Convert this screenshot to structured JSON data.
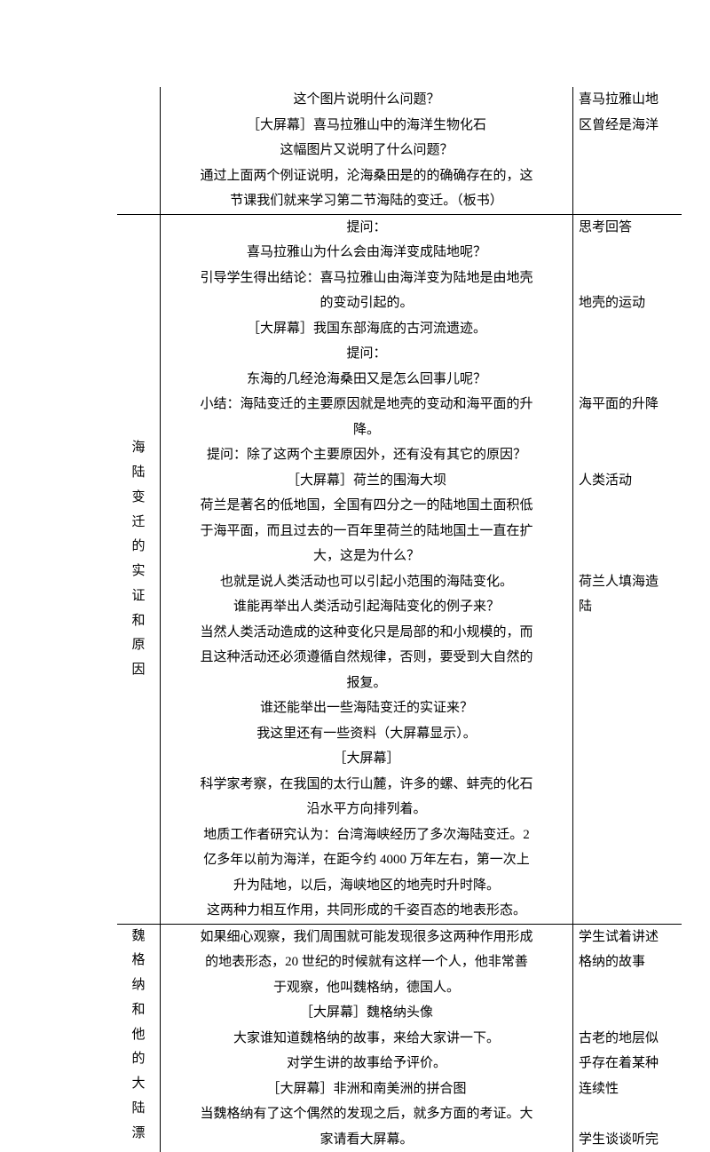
{
  "section1": {
    "left": "",
    "mid": [
      "这个图片说明什么问题？",
      "［大屏幕］喜马拉雅山中的海洋生物化石",
      "这幅图片又说明了什么问题？",
      "通过上面两个例证说明，沦海桑田是的的确确存在的，这",
      "节课我们就来学习第二节海陆的变迁。（板书）"
    ],
    "right": [
      "喜马拉雅山地",
      "区曾经是海洋"
    ]
  },
  "section2": {
    "left": [
      "海",
      "陆",
      "变",
      "迁",
      "的",
      "实",
      "证",
      "和",
      "原",
      "因"
    ],
    "mid": [
      "提问：",
      "喜马拉雅山为什么会由海洋变成陆地呢？",
      "引导学生得出结论：喜马拉雅山由海洋变为陆地是由地壳",
      "的变动引起的。",
      "［大屏幕］我国东部海底的古河流遗迹。",
      "提问：",
      "东海的几经沧海桑田又是怎么回事儿呢？",
      "小结：海陆变迁的主要原因就是地壳的变动和海平面的升",
      "降。",
      "提问：除了这两个主要原因外，还有没有其它的原因？",
      "［大屏幕］荷兰的围海大坝",
      "荷兰是著名的低地国，全国有四分之一的陆地国土面积低",
      "于海平面，而且过去的一百年里荷兰的陆地国土一直在扩",
      "大，这是为什么？",
      "也就是说人类活动也可以引起小范围的海陆变化。",
      "谁能再举出人类活动引起海陆变化的例子来？",
      "当然人类活动造成的这种变化只是局部的和小规模的，而",
      "且这种活动还必须遵循自然规律，否则，要受到大自然的",
      "报复。",
      "谁还能举出一些海陆变迁的实证来？",
      "我这里还有一些资料（大屏幕显示）。",
      "［大屏幕］",
      "科学家考察，在我国的太行山麓，许多的螺、蚌壳的化石",
      "沿水平方向排列着。",
      "地质工作者研究认为：台湾海峡经历了多次海陆变迁。2",
      "亿多年以前为海洋，在距今约 4000 万年左右，第一次上",
      "升为陆地，以后，海峡地区的地壳时升时降。",
      "这两种力相互作用，共同形成的千姿百态的地表形态。"
    ],
    "right": [
      {
        "t": "思考回答",
        "blank": 0
      },
      {
        "t": "",
        "blank": 2
      },
      {
        "t": "地壳的运动",
        "blank": 0
      },
      {
        "t": "",
        "blank": 3
      },
      {
        "t": "海平面的升降",
        "blank": 0
      },
      {
        "t": "",
        "blank": 2
      },
      {
        "t": "人类活动",
        "blank": 0
      },
      {
        "t": "",
        "blank": 3
      },
      {
        "t": "荷兰人填海造",
        "blank": 0
      },
      {
        "t": "陆",
        "blank": 0
      }
    ]
  },
  "section3": {
    "left": [
      "魏",
      "格",
      "纳",
      "和",
      "他",
      "的",
      "大",
      "陆",
      "漂"
    ],
    "mid": [
      "如果细心观察，我们周围就可能发现很多这两种作用形成",
      "的地表形态，20 世纪的时候就有这样一个人，他非常善",
      "于观察，他叫魏格纳，德国人。",
      "［大屏幕］魏格纳头像",
      "大家谁知道魏格纳的故事，来给大家讲一下。",
      "对学生讲的故事给予评价。",
      "［大屏幕］非洲和南美洲的拼合图",
      "当魏格纳有了这个偶然的发现之后，就多方面的考证。大",
      "家请看大屏幕。"
    ],
    "right": [
      {
        "t": "学生试着讲述",
        "blank": 0
      },
      {
        "t": "格纳的故事",
        "blank": 0
      },
      {
        "t": "",
        "blank": 2
      },
      {
        "t": "古老的地层似",
        "blank": 0
      },
      {
        "t": "乎存在着某种",
        "blank": 0
      },
      {
        "t": "连续性",
        "blank": 0
      },
      {
        "t": "",
        "blank": 1
      },
      {
        "t": "学生谈谈听完",
        "blank": 0
      }
    ]
  }
}
